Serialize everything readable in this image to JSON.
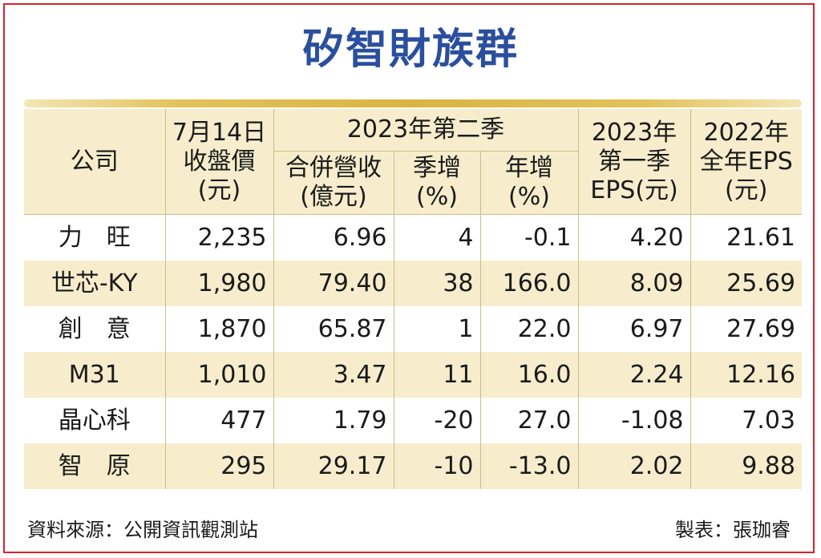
{
  "header": {
    "title": "矽智財族群"
  },
  "chart_data": {
    "type": "table",
    "title": "矽智財族群",
    "group_header": "2023年第二季",
    "columns": [
      "公司",
      "7月14日\n收盤價\n(元)",
      "合併營收\n(億元)",
      "季增\n(%)",
      "年增\n(%)",
      "2023年\n第一季\nEPS(元)",
      "2022年\n全年EPS\n(元)"
    ],
    "rows": [
      [
        "力　旺",
        "2,235",
        "6.96",
        "4",
        "-0.1",
        "4.20",
        "21.61"
      ],
      [
        "世芯-KY",
        "1,980",
        "79.40",
        "38",
        "166.0",
        "8.09",
        "25.69"
      ],
      [
        "創　意",
        "1,870",
        "65.87",
        "1",
        "22.0",
        "6.97",
        "27.69"
      ],
      [
        "M31",
        "1,010",
        "3.47",
        "11",
        "16.0",
        "2.24",
        "12.16"
      ],
      [
        "晶心科",
        "477",
        "1.79",
        "-20",
        "27.0",
        "-1.08",
        "7.03"
      ],
      [
        "智　原",
        "295",
        "29.17",
        "-10",
        "-13.0",
        "2.02",
        "9.88"
      ]
    ]
  },
  "footer": {
    "source": "資料來源：公開資訊觀測站",
    "credit": "製表：張珈睿"
  },
  "colors": {
    "title": "#2b4f9e",
    "header_fill": "#f7edcc",
    "accent_bar": "#d9b540",
    "border": "#d9232d"
  }
}
